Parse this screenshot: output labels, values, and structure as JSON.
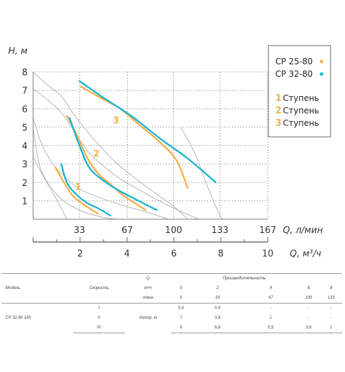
{
  "chart_data": {
    "type": "line",
    "ylabel": "H, м",
    "xlabel": "Q, л/мин",
    "x2label": "Q, м³/ч",
    "xlim": [
      0,
      167
    ],
    "ylim": [
      0,
      8
    ],
    "x_ticks": [
      "33",
      "67",
      "100",
      "133",
      "167"
    ],
    "x_tick_values": [
      33,
      67,
      100,
      133,
      167
    ],
    "x2_ticks": [
      "2",
      "4",
      "6",
      "8",
      "10"
    ],
    "x2_tick_values": [
      2,
      4,
      6,
      8,
      10
    ],
    "y_ticks": [
      "1",
      "2",
      "3",
      "4",
      "5",
      "6",
      "7",
      "8"
    ],
    "y_tick_values": [
      1,
      2,
      3,
      4,
      5,
      6,
      7,
      8
    ],
    "grid": true,
    "legend": {
      "position": "top-right",
      "models": [
        {
          "label": "CP 25-80",
          "color": "#f2b04a"
        },
        {
          "label": "CP 32-80",
          "color": "#19b6d2"
        }
      ],
      "steps": [
        {
          "num": "1",
          "label": "Ступень"
        },
        {
          "num": "2",
          "label": "Ступень"
        },
        {
          "num": "3",
          "label": "Ступень"
        }
      ]
    },
    "step_labels": [
      {
        "text": "1",
        "x": 32,
        "y": 1.6
      },
      {
        "text": "2",
        "x": 45,
        "y": 3.4
      },
      {
        "text": "3",
        "x": 59,
        "y": 5.2
      }
    ],
    "series": [
      {
        "name": "CP 25-80",
        "step": "1",
        "color": "#f2b04a",
        "x": [
          16,
          22,
          28,
          34,
          40,
          46
        ],
        "y": [
          2.8,
          2.0,
          1.3,
          0.9,
          0.6,
          0.3
        ]
      },
      {
        "name": "CP 25-80",
        "step": "2",
        "color": "#f2b04a",
        "x": [
          24,
          31,
          38,
          46,
          55,
          64,
          72,
          80
        ],
        "y": [
          5.6,
          4.6,
          3.4,
          2.5,
          1.9,
          1.3,
          0.9,
          0.5
        ]
      },
      {
        "name": "CP 25-80",
        "step": "3",
        "color": "#f2b04a",
        "x": [
          34,
          48,
          62,
          76,
          90,
          102,
          110
        ],
        "y": [
          7.2,
          6.6,
          6.0,
          5.1,
          4.2,
          3.2,
          1.7
        ]
      },
      {
        "name": "CP 32-80",
        "step": "1",
        "color": "#19b6d2",
        "x": [
          20,
          24,
          30,
          38,
          46,
          55
        ],
        "y": [
          3.0,
          2.0,
          1.4,
          0.9,
          0.6,
          0.2
        ]
      },
      {
        "name": "CP 32-80",
        "step": "2",
        "color": "#19b6d2",
        "x": [
          26,
          33,
          40,
          50,
          60,
          70,
          80,
          88
        ],
        "y": [
          5.5,
          4.0,
          2.8,
          2.1,
          1.6,
          1.2,
          0.8,
          0.5
        ]
      },
      {
        "name": "CP 32-80",
        "step": "3",
        "color": "#19b6d2",
        "x": [
          33,
          50,
          70,
          90,
          110,
          130
        ],
        "y": [
          7.5,
          6.6,
          5.6,
          4.4,
          3.3,
          2.0
        ]
      },
      {
        "name": "",
        "step": "",
        "color": "#b5b5b5",
        "x": [
          0,
          10,
          20,
          28,
          36,
          46,
          60,
          80,
          100,
          110
        ],
        "y": [
          8,
          7.3,
          6.7,
          5.8,
          5.0,
          4.1,
          3.0,
          1.8,
          0.7,
          0
        ]
      },
      {
        "name": "",
        "step": "",
        "color": "#b5b5b5",
        "x": [
          0,
          10,
          20,
          30,
          40,
          60,
          80,
          100,
          118
        ],
        "y": [
          7.1,
          6.5,
          5.8,
          4.7,
          3.6,
          2.3,
          1.4,
          0.6,
          0
        ]
      },
      {
        "name": "",
        "step": "",
        "color": "#b5b5b5",
        "x": [
          0,
          6,
          14,
          24,
          34,
          50,
          66,
          80,
          96
        ],
        "y": [
          5.5,
          4.1,
          3.0,
          2.2,
          1.6,
          1.1,
          0.7,
          0.4,
          0
        ]
      },
      {
        "name": "",
        "step": "",
        "color": "#b5b5b5",
        "x": [
          0,
          4,
          8,
          14,
          20,
          30,
          40,
          50,
          60
        ],
        "y": [
          4.9,
          3.1,
          2.3,
          1.6,
          1.1,
          0.6,
          0.3,
          0.1,
          0
        ]
      },
      {
        "name": "",
        "step": "",
        "color": "#b5b5b5",
        "x": [
          105,
          115,
          125,
          133,
          135
        ],
        "y": [
          5.0,
          3.6,
          1.6,
          0.2,
          0
        ]
      },
      {
        "name": "",
        "step": "",
        "color": "#b5b5b5",
        "x": [
          0,
          6,
          12,
          18,
          24
        ],
        "y": [
          3.4,
          2.5,
          1.7,
          0.9,
          0
        ]
      }
    ]
  },
  "table": {
    "header_model": "Модель",
    "header_speed": "Скорость",
    "header_q": "Q",
    "header_perf": "Производительность",
    "unit_m3h": "м³/ч",
    "unit_lmin": "л/мин",
    "m3h_values": [
      "0",
      "2",
      "4",
      "6",
      "8"
    ],
    "lmin_values": [
      "0",
      "33",
      "67",
      "100",
      "133"
    ],
    "model": "CP 32-80 180",
    "head_label": "Напор, м",
    "rows": [
      {
        "speed": "I",
        "values": [
          "5,5",
          "0,9",
          "-",
          "-",
          "-"
        ]
      },
      {
        "speed": "II",
        "values": [
          "7",
          "3,8",
          "1",
          "-",
          "-"
        ]
      },
      {
        "speed": "III",
        "values": [
          "8",
          "6,8",
          "5,5",
          "3,8",
          "2"
        ]
      }
    ]
  }
}
